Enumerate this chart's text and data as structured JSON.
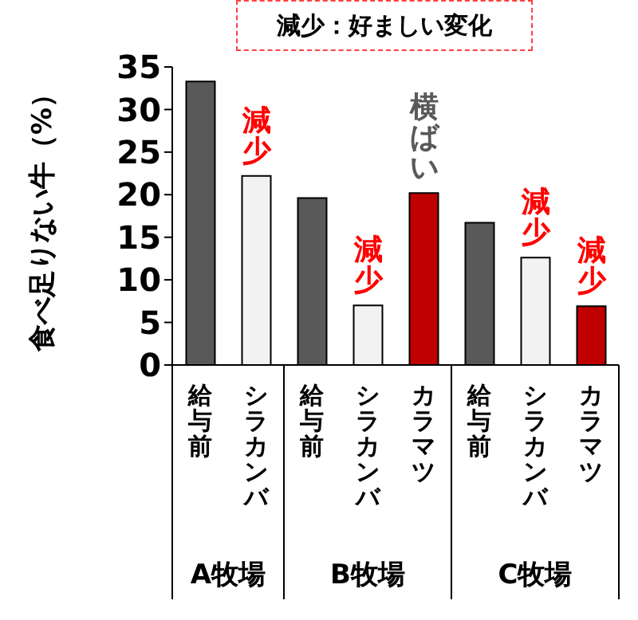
{
  "chart_data": {
    "type": "bar",
    "title": "減少：好ましい変化",
    "ylabel": "食べ足りない牛（%）",
    "categories": [
      "給与前",
      "シラカンバ",
      "給与前",
      "シラカンバ",
      "カラマツ",
      "給与前",
      "シラカンバ",
      "カラマツ"
    ],
    "values": [
      33.3,
      22.2,
      19.6,
      7.0,
      20.2,
      16.7,
      12.6,
      6.9
    ],
    "colors": [
      "#595959",
      "#f2f2f2",
      "#595959",
      "#f2f2f2",
      "#c00000",
      "#595959",
      "#f2f2f2",
      "#c00000"
    ],
    "ylim": [
      0,
      35
    ],
    "yticks": [
      0,
      5,
      10,
      15,
      20,
      25,
      30,
      35
    ],
    "grid": false,
    "legend": false,
    "annotations": [
      "A牧場",
      "B牧場",
      "C牧場",
      "減少",
      "減少",
      "横ばい",
      "減少",
      "減少"
    ]
  }
}
